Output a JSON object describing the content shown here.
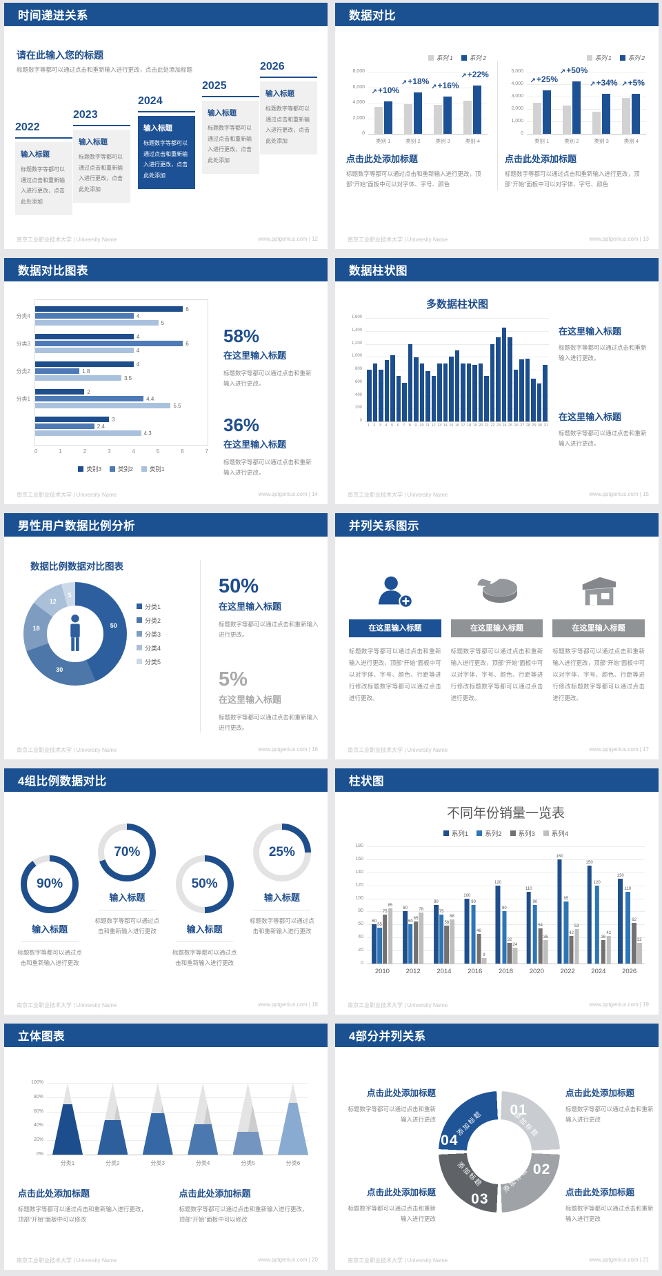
{
  "accent_color": "#1f4e8c",
  "header_color": "#1b5191",
  "footer": {
    "university": "南京工业职业技术大学 | University Name",
    "site": "www.pptgenius.com"
  },
  "slides": [
    {
      "title": "时间递进关系",
      "page_label": "| 12",
      "heading": "请在此输入您的标题",
      "subtext": "标题数字等都可以通过点击和重新输入进行更改，点击此处添加标题",
      "items": [
        {
          "year": "2022",
          "label": "输入标题",
          "text": "标题数字等都可以通过点击和重新输入进行更改，点击此处添加",
          "highlighted": false
        },
        {
          "year": "2023",
          "label": "输入标题",
          "text": "标题数字等都可以通过点击和重新输入进行更改，点击此处添加",
          "highlighted": false
        },
        {
          "year": "2024",
          "label": "输入标题",
          "text": "标题数字等都可以通过点击和重新输入进行更改，点击此处添加",
          "highlighted": true
        },
        {
          "year": "2025",
          "label": "输入标题",
          "text": "标题数字等都可以通过点击和重新输入进行更改，点击此处添加",
          "highlighted": false
        },
        {
          "year": "2026",
          "label": "输入标题",
          "text": "标题数字等都可以通过点击和重新输入进行更改，点击此处添加",
          "highlighted": false
        }
      ]
    },
    {
      "title": "数据对比",
      "page_label": "| 13",
      "legend": [
        "系列 1",
        "系列 2"
      ],
      "charts": [
        {
          "type": "bar",
          "yticks": [
            "8,000",
            "6,000",
            "4,000",
            "2,000",
            "0"
          ],
          "ymax": 8000,
          "categories": [
            "类别 1",
            "类别 2",
            "类别 3",
            "类别 4"
          ],
          "series": [
            {
              "name": "系列 1",
              "color": "#d2d2d2",
              "values": [
                3500,
                3800,
                3700,
                4300
              ]
            },
            {
              "name": "系列 2",
              "color": "#1d5195",
              "values": [
                4200,
                5300,
                4800,
                6200
              ]
            }
          ],
          "growth_labels": [
            "+10%",
            "+18%",
            "+16%",
            "+22%"
          ],
          "heading": "点击此处添加标题",
          "text": "标题数字等都可以通过点击和重新输入进行更改，顶部“开始”面板中可以对字体、字号、颜色"
        },
        {
          "type": "bar",
          "yticks": [
            "5,000",
            "4,000",
            "3,000",
            "2,000",
            "1,000",
            "0"
          ],
          "ymax": 5000,
          "categories": [
            "类别 1",
            "类别 2",
            "类别 3",
            "类别 4"
          ],
          "series": [
            {
              "name": "系列 1",
              "color": "#d2d2d2",
              "values": [
                2500,
                2300,
                1800,
                2900
              ]
            },
            {
              "name": "系列 2",
              "color": "#1d5195",
              "values": [
                3500,
                4200,
                3200,
                3200
              ]
            }
          ],
          "growth_labels": [
            "+25%",
            "+50%",
            "+34%",
            "+5%"
          ],
          "heading": "点击此处添加标题",
          "text": "标题数字等都可以通过点击和重新输入进行更改，顶部“开始”面板中可以对字体、字号、颜色"
        }
      ]
    },
    {
      "title": "数据对比图表",
      "page_label": "| 14",
      "chart": {
        "type": "bar-horizontal",
        "xmax": 7,
        "xticks": [
          "0",
          "1",
          "2",
          "3",
          "4",
          "5",
          "6",
          "7"
        ],
        "colors": [
          "#1f4e8c",
          "#4e7ab5",
          "#a9c1dc"
        ],
        "legend": [
          "类别3",
          "类别2",
          "类别1"
        ],
        "groups": [
          {
            "label": "分类4",
            "values": [
              6,
              4,
              5
            ]
          },
          {
            "label": "分类3",
            "values": [
              4,
              6,
              4
            ]
          },
          {
            "label": "分类2",
            "values": [
              4,
              1.8,
              3.5
            ]
          },
          {
            "label": "分类1",
            "values": [
              2,
              4.4,
              5.5
            ]
          },
          {
            "label": "",
            "values": [
              3,
              2.4,
              4.3
            ]
          }
        ]
      },
      "stats": [
        {
          "value": "58%",
          "heading": "在这里输入标题",
          "text": "标题数字等都可以通过点击和重新输入进行更改。"
        },
        {
          "value": "36%",
          "heading": "在这里输入标题",
          "text": "标题数字等都可以通过点击和重新输入进行更改。"
        }
      ]
    },
    {
      "title": "数据柱状图",
      "page_label": "| 15",
      "chart_title": "多数据柱状图",
      "type": "bar",
      "bar_color": "#1d4e8d",
      "yticks": [
        "1,600",
        "1,400",
        "1,200",
        "1,000",
        "800",
        "600",
        "400",
        "200",
        "0"
      ],
      "ymax": 1600,
      "values": [
        800,
        900,
        800,
        950,
        1020,
        700,
        600,
        1200,
        990,
        900,
        780,
        700,
        900,
        900,
        1000,
        1100,
        900,
        900,
        880,
        900,
        700,
        1200,
        1300,
        1450,
        1300,
        800,
        960,
        970,
        660,
        590,
        870
      ],
      "blocks": [
        {
          "heading": "在这里输入标题",
          "text": "标题数字等都可以通过点击和重新输入进行更改。"
        },
        {
          "heading": "在这里输入标题",
          "text": "标题数字等都可以通过点击和重新输入进行更改。"
        }
      ]
    },
    {
      "title": "男性用户数据比例分析",
      "page_label": "| 16",
      "chart_title": "数据比例数据对比图表",
      "type": "donut",
      "colors": [
        "#2d5f9e",
        "#4d77a8",
        "#7e9cc0",
        "#aabfd8",
        "#ccd9e8"
      ],
      "segments": [
        {
          "label": "分类1",
          "value": 50
        },
        {
          "label": "分类2",
          "value": 30
        },
        {
          "label": "分类3",
          "value": 18
        },
        {
          "label": "分类4",
          "value": 12
        },
        {
          "label": "分类5",
          "value": 5
        }
      ],
      "stats": [
        {
          "value": "50%",
          "heading": "在这里输入标题",
          "text": "标题数字等都可以通过点击和重新输入进行更改。",
          "muted": false
        },
        {
          "value": "5%",
          "heading": "在这里输入标题",
          "text": "标题数字等都可以通过点击和重新输入进行更改。",
          "muted": true
        }
      ]
    },
    {
      "title": "并列关系图示",
      "page_label": "| 17",
      "columns": [
        {
          "icon": "woman-plus-icon",
          "heading": "在这里输入标题",
          "accent": true,
          "text": "标题数字等都可以通过点击和重新输入进行更改，顶部“开始”面板中可以对字体、字号、颜色、行距等进行修改标题数字等都可以通过点击进行更改。"
        },
        {
          "icon": "pie-3d-icon",
          "heading": "在这里输入标题",
          "accent": false,
          "text": "标题数字等都可以通过点击和重新输入进行更改，顶部“开始”面板中可以对字体、字号、颜色、行距等进行修改标题数字等都可以通过点击进行更改。"
        },
        {
          "icon": "building-icon",
          "heading": "在这里输入标题",
          "accent": false,
          "text": "标题数字等都可以通过点击和重新输入进行更改，顶部“开始”面板中可以对字体、字号、颜色、行距等进行修改标题数字等都可以通过点击进行更改。"
        }
      ]
    },
    {
      "title": "4组比例数据对比",
      "page_label": "| 18",
      "ring_color": "#1f4e8c",
      "track_color": "#e3e3e3",
      "rings": [
        {
          "percent": 90,
          "label": "90%",
          "heading": "输入标题",
          "text": "标题数字等都可以通过点击和重新输入进行更改",
          "raised": false
        },
        {
          "percent": 70,
          "label": "70%",
          "heading": "输入标题",
          "text": "标题数字等都可以通过点击和重新输入进行更改",
          "raised": true
        },
        {
          "percent": 50,
          "label": "50%",
          "heading": "输入标题",
          "text": "标题数字等都可以通过点击和重新输入进行更改",
          "raised": false
        },
        {
          "percent": 25,
          "label": "25%",
          "heading": "输入标题",
          "text": "标题数字等都可以通过点击和重新输入进行更改",
          "raised": true
        }
      ]
    },
    {
      "title": "柱状图",
      "page_label": "| 19",
      "chart_title": "不同年份销量一览表",
      "type": "bar",
      "legend": [
        "系列1",
        "系列2",
        "系列3",
        "系列4"
      ],
      "series_colors": [
        "#1f4e8c",
        "#2e75b6",
        "#767171",
        "#bfbfbf"
      ],
      "yticks": [
        "180",
        "160",
        "140",
        "120",
        "100",
        "80",
        "60",
        "40",
        "20",
        "0"
      ],
      "ymax": 180,
      "categories": [
        "2010",
        "2012",
        "2014",
        "2016",
        "2018",
        "2020",
        "2022",
        "2024",
        "2026"
      ],
      "values": [
        [
          60,
          55,
          75,
          85
        ],
        [
          80,
          60,
          65,
          78
        ],
        [
          90,
          75,
          58,
          68
        ],
        [
          100,
          90,
          46,
          9
        ],
        [
          120,
          80,
          32,
          24
        ],
        [
          110,
          90,
          54,
          36
        ],
        [
          160,
          95,
          42,
          53
        ],
        [
          150,
          120,
          36,
          42
        ],
        [
          130,
          110,
          62,
          32
        ]
      ]
    },
    {
      "title": "立体图表",
      "page_label": "| 20",
      "type": "pyramid",
      "yticks": [
        "100%",
        "80%",
        "60%",
        "40%",
        "20%",
        "0%"
      ],
      "pyramids": [
        {
          "label": "分类1",
          "percent": 70,
          "color": "#1c4e8d"
        },
        {
          "label": "分类2",
          "percent": 48,
          "color": "#2d5f9d"
        },
        {
          "label": "分类3",
          "percent": 58,
          "color": "#3568a4"
        },
        {
          "label": "分类4",
          "percent": 42,
          "color": "#4b79af"
        },
        {
          "label": "分类5",
          "percent": 32,
          "color": "#7495bf"
        },
        {
          "label": "分类6",
          "percent": 72,
          "color": "#8aabd1"
        }
      ],
      "blocks": [
        {
          "heading": "点击此处添加标题",
          "text": "标题数字等都可以通过点击和重新输入进行更改，顶部“开始”面板中可以修改"
        },
        {
          "heading": "点击此处添加标题",
          "text": "标题数字等都可以通过点击和重新输入进行更改，顶部“开始”面板中可以修改"
        }
      ]
    },
    {
      "title": "4部分并列关系",
      "page_label": "| 21",
      "ring": [
        {
          "num": "01",
          "label": "添加标题",
          "color": "#c9cdd1"
        },
        {
          "num": "02",
          "label": "添加标题",
          "color": "#9fa3a7"
        },
        {
          "num": "03",
          "label": "添加标题",
          "color": "#5f6367"
        },
        {
          "num": "04",
          "label": "添加标题",
          "color": "#1f5496"
        }
      ],
      "blocks": [
        {
          "pos": "top-left",
          "heading": "点击此处添加标题",
          "text": "标题数字等都可以通过点击和重新输入进行更改"
        },
        {
          "pos": "top-right",
          "heading": "点击此处添加标题",
          "text": "标题数字等都可以通过点击和重新输入进行更改"
        },
        {
          "pos": "bottom-left",
          "heading": "点击此处添加标题",
          "text": "标题数字等都可以通过点击和重新输入进行更改"
        },
        {
          "pos": "bottom-right",
          "heading": "点击此处添加标题",
          "text": "标题数字等都可以通过点击和重新输入进行更改"
        }
      ]
    }
  ]
}
